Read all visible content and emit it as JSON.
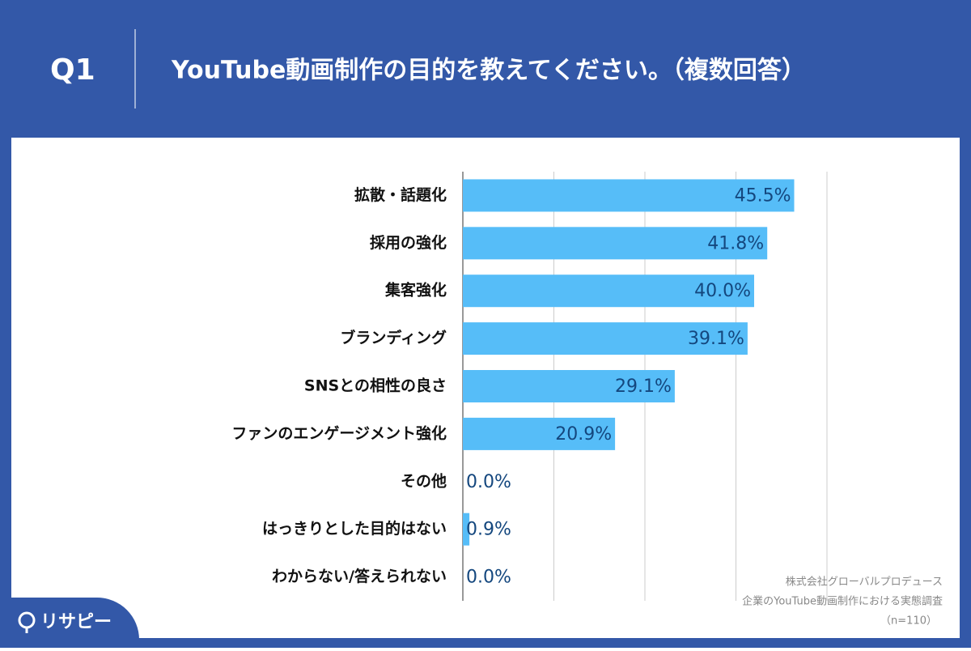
{
  "header": {
    "label": "Q1",
    "title": "YouTube動画制作の目的を教えてください。（複数回答）"
  },
  "chart_data": {
    "type": "bar",
    "orientation": "horizontal",
    "categories": [
      "拡散・話題化",
      "採用の強化",
      "集客強化",
      "ブランディング",
      "SNSとの相性の良さ",
      "ファンのエンゲージメント強化",
      "その他",
      "はっきりとした目的はない",
      "わからない/答えられない"
    ],
    "values": [
      45.5,
      41.8,
      40.0,
      39.1,
      29.1,
      20.9,
      0.0,
      0.9,
      0.0
    ],
    "value_labels": [
      "45.5%",
      "41.8%",
      "40.0%",
      "39.1%",
      "29.1%",
      "20.9%",
      "0.0%",
      "0.9%",
      "0.0%"
    ],
    "color": "#56bdf8",
    "xlim": [
      0,
      50
    ],
    "xticks": [
      0,
      12.5,
      25,
      37.5,
      50
    ],
    "grid": true
  },
  "source": [
    "株式会社グローバルプロデュース",
    "企業のYouTube動画制作における実態調査",
    "（n=110）"
  ],
  "logo": "リサピー"
}
